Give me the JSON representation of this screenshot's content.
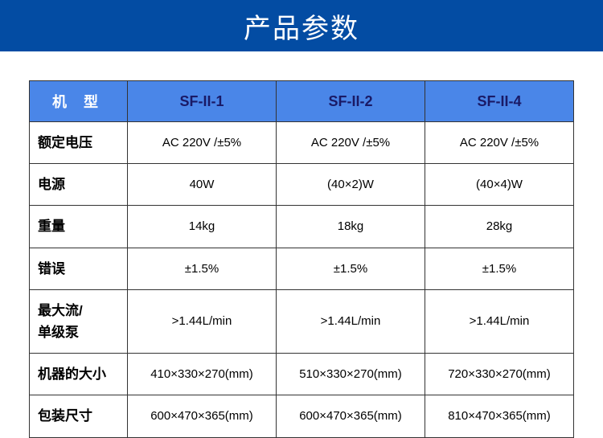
{
  "title": "产品参数",
  "table": {
    "header_label": "机 型",
    "columns": [
      "SF-II-1",
      "SF-II-2",
      "SF-II-4"
    ],
    "rows": [
      {
        "label": "额定电压",
        "values": [
          "AC 220V /±5%",
          "AC 220V /±5%",
          "AC 220V /±5%"
        ]
      },
      {
        "label": "电源",
        "values": [
          "40W",
          "(40×2)W",
          "(40×4)W"
        ]
      },
      {
        "label": "重量",
        "values": [
          "14kg",
          "18kg",
          "28kg"
        ]
      },
      {
        "label": "错误",
        "values": [
          "±1.5%",
          "±1.5%",
          "±1.5%"
        ]
      },
      {
        "label": "最大流/\n单级泵",
        "values": [
          ">1.44L/min",
          ">1.44L/min",
          ">1.44L/min"
        ]
      },
      {
        "label": "机器的大小",
        "values": [
          "410×330×270(mm)",
          "510×330×270(mm)",
          "720×330×270(mm)"
        ]
      },
      {
        "label": "包装尺寸",
        "values": [
          "600×470×365(mm)",
          "600×470×365(mm)",
          "810×470×365(mm)"
        ]
      }
    ]
  },
  "styles": {
    "title_bg": "#034ca3",
    "title_color": "#ffffff",
    "title_fontsize": 34,
    "header_bg": "#4a86e8",
    "header_first_color": "#ffffff",
    "header_data_color": "#1a1a66",
    "header_fontsize": 18,
    "label_fontsize": 17,
    "data_fontsize": 15,
    "border_color": "#333333",
    "background_color": "#ffffff",
    "col_label_width": 122,
    "col_data_width": 185
  }
}
